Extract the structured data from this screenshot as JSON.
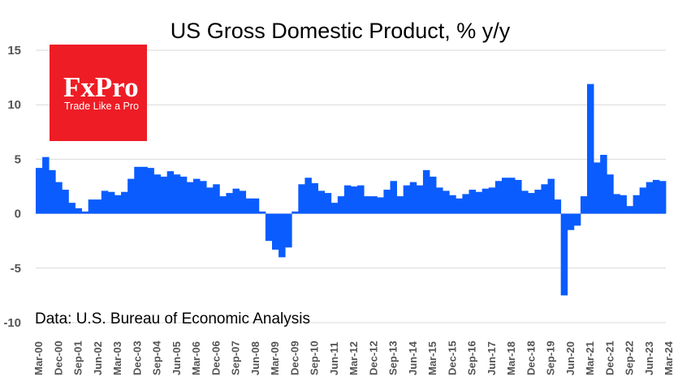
{
  "chart_data": {
    "type": "bar",
    "title": "US Gross Domestic Product, % y/y",
    "source_note": "Data: U.S. Bureau of Economic Analysis",
    "xlabel": "",
    "ylabel": "",
    "ylim": [
      -10,
      15
    ],
    "yticks": [
      15,
      10,
      5,
      0,
      -5,
      -10
    ],
    "grid": true,
    "bar_color": "#0a5cff",
    "series": [
      {
        "name": "GDP % y/y",
        "values": [
          4.2,
          5.2,
          4.0,
          2.9,
          2.2,
          1.0,
          0.5,
          0.2,
          1.3,
          1.3,
          2.1,
          2.0,
          1.7,
          2.0,
          3.2,
          4.3,
          4.3,
          4.2,
          3.6,
          3.4,
          3.9,
          3.6,
          3.4,
          2.9,
          3.2,
          3.0,
          2.4,
          2.7,
          1.6,
          1.9,
          2.3,
          2.1,
          1.4,
          1.4,
          0.2,
          -2.5,
          -3.3,
          -4.0,
          -3.1,
          0.2,
          2.7,
          3.3,
          2.8,
          2.1,
          1.9,
          1.0,
          1.6,
          2.6,
          2.5,
          2.6,
          1.6,
          1.6,
          1.5,
          2.2,
          3.0,
          1.6,
          2.6,
          2.9,
          2.6,
          4.0,
          3.4,
          2.4,
          2.1,
          1.7,
          1.4,
          1.8,
          2.2,
          2.0,
          2.3,
          2.4,
          3.0,
          3.3,
          3.3,
          3.1,
          2.1,
          1.9,
          2.2,
          2.7,
          3.2,
          1.3,
          -7.5,
          -1.5,
          -1.1,
          1.6,
          11.9,
          4.7,
          5.4,
          3.6,
          1.8,
          1.7,
          0.7,
          1.7,
          2.4,
          2.9,
          3.1,
          3.0
        ]
      }
    ],
    "x_tick_labels": [
      "Mar-00",
      "Dec-00",
      "Sep-01",
      "Jun-02",
      "Mar-03",
      "Dec-03",
      "Sep-04",
      "Jun-05",
      "Mar-06",
      "Dec-06",
      "Sep-07",
      "Jun-08",
      "Mar-09",
      "Dec-09",
      "Sep-10",
      "Jun-11",
      "Mar-12",
      "Dec-12",
      "Sep-13",
      "Jun-14",
      "Mar-15",
      "Dec-15",
      "Sep-16",
      "Jun-17",
      "Mar-18",
      "Dec-18",
      "Sep-19",
      "Jun-20",
      "Mar-21",
      "Dec-21",
      "Sep-22",
      "Jun-23",
      "Mar-24"
    ]
  },
  "logo": {
    "name": "FxPro",
    "tagline": "Trade Like a Pro",
    "color": "#ee1c25"
  }
}
